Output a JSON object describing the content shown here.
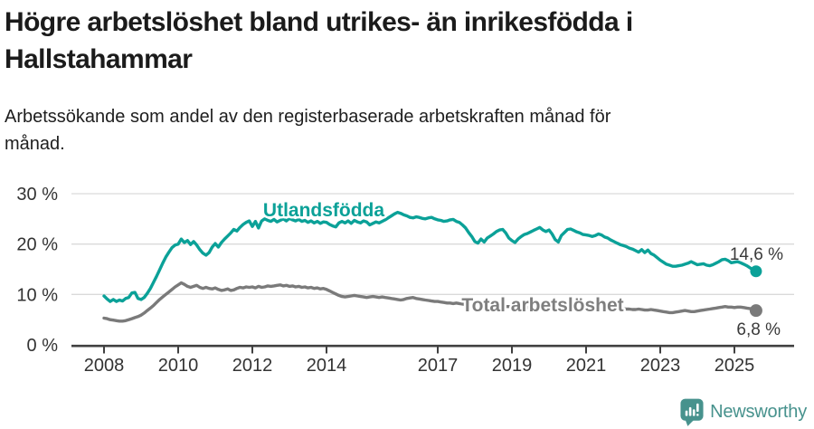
{
  "header": {
    "title_lines": [
      "Högre arbetslöshet bland utrikes- än inrikesfödda i",
      "Hallstahammar"
    ],
    "subtitle_lines": [
      "Arbetssökande som andel av den registerbaserade arbetskraften månad för",
      "månad."
    ]
  },
  "footer": {
    "brand": "Newsworthy",
    "logo_icon": "speech-bubble-bar-chart"
  },
  "colors": {
    "teal_series": "#0ba198",
    "gray_series": "#7a7a7a",
    "gray_label": "#7f7f7f",
    "value_label": "#3a3a3a",
    "axis": "#404040",
    "gridline": "#dadada",
    "tick_text": "#333333",
    "logo_teal": "#47928d"
  },
  "chart_data": {
    "type": "line",
    "title": "Högre arbetslöshet bland utrikes- än inrikesfödda i Hallstahammar",
    "subtitle": "Arbetssökande som andel av den registerbaserade arbetskraften månad för månad.",
    "xlabel": "",
    "ylabel": "",
    "grid": true,
    "ylim": [
      0,
      30
    ],
    "xlim": [
      2008.0,
      2025.67
    ],
    "y_ticks": [
      {
        "y": 0,
        "label": "0 %"
      },
      {
        "y": 10,
        "label": "10 %"
      },
      {
        "y": 20,
        "label": "20 %"
      },
      {
        "y": 30,
        "label": "30 %"
      }
    ],
    "x_ticks": [
      {
        "x": 2008,
        "label": "2008"
      },
      {
        "x": 2010,
        "label": "2010"
      },
      {
        "x": 2012,
        "label": "2012"
      },
      {
        "x": 2014,
        "label": "2014"
      },
      {
        "x": 2017,
        "label": "2017"
      },
      {
        "x": 2019,
        "label": "2019"
      },
      {
        "x": 2021,
        "label": "2021"
      },
      {
        "x": 2023,
        "label": "2023"
      },
      {
        "x": 2025,
        "label": "2025"
      }
    ],
    "series": [
      {
        "name": "Utlandsfödda",
        "color": "#0ba198",
        "label_color": "#0ba198",
        "end_label": "14,6 %",
        "end_value": 14.6,
        "start_year": 2008,
        "points_per_year": 12,
        "values": [
          9.7,
          9.1,
          8.6,
          9.0,
          8.6,
          8.9,
          8.7,
          9.2,
          9.4,
          10.3,
          10.4,
          9.2,
          9.0,
          9.4,
          10.2,
          11.2,
          12.4,
          13.6,
          14.9,
          16.2,
          17.4,
          18.4,
          19.3,
          19.8,
          20.0,
          21.0,
          20.3,
          20.7,
          19.9,
          20.5,
          19.8,
          18.9,
          18.2,
          17.8,
          18.3,
          19.4,
          20.1,
          19.4,
          20.3,
          21.0,
          21.6,
          22.2,
          22.9,
          22.6,
          23.3,
          23.9,
          24.3,
          24.6,
          23.5,
          24.5,
          23.2,
          24.6,
          25.0,
          24.7,
          24.5,
          24.9,
          24.4,
          24.7,
          25.0,
          24.6,
          25.1,
          24.8,
          24.6,
          24.9,
          24.5,
          24.7,
          24.3,
          24.6,
          24.2,
          24.5,
          24.1,
          24.4,
          24.3,
          23.9,
          23.6,
          23.4,
          24.2,
          24.5,
          24.2,
          24.6,
          24.1,
          24.7,
          24.4,
          24.2,
          24.6,
          24.4,
          23.8,
          24.1,
          24.4,
          24.2,
          24.5,
          24.8,
          25.2,
          25.6,
          26.0,
          26.3,
          26.1,
          25.8,
          25.6,
          25.3,
          25.2,
          25.4,
          25.3,
          25.1,
          25.0,
          25.2,
          25.3,
          25.0,
          24.8,
          24.7,
          24.5,
          24.6,
          24.8,
          24.9,
          24.5,
          24.3,
          23.8,
          23.2,
          22.3,
          21.5,
          20.5,
          20.2,
          21.0,
          20.4,
          21.2,
          21.6,
          22.0,
          22.5,
          22.8,
          22.9,
          22.2,
          21.2,
          20.7,
          20.3,
          21.0,
          21.5,
          21.9,
          22.1,
          22.4,
          22.7,
          23.0,
          23.3,
          22.8,
          22.5,
          22.8,
          22.0,
          20.9,
          20.4,
          21.7,
          22.3,
          22.9,
          23.0,
          22.7,
          22.4,
          22.2,
          21.9,
          21.8,
          21.7,
          21.5,
          21.7,
          22.0,
          21.8,
          21.4,
          21.2,
          20.8,
          20.5,
          20.2,
          19.9,
          19.7,
          19.5,
          19.2,
          19.0,
          18.7,
          18.4,
          18.9,
          18.3,
          18.8,
          18.1,
          17.8,
          17.3,
          16.8,
          16.4,
          16.0,
          15.8,
          15.6,
          15.6,
          15.7,
          15.8,
          16.0,
          16.2,
          16.5,
          16.2,
          15.9,
          16.0,
          16.1,
          15.8,
          15.7,
          15.9,
          16.2,
          16.5,
          16.9,
          17.0,
          16.7,
          16.3,
          16.4,
          16.5,
          16.3,
          16.0,
          15.7,
          15.3,
          14.9,
          14.6
        ]
      },
      {
        "name": "Total arbetslöshet",
        "color": "#7a7a7a",
        "label_color": "#7f7f7f",
        "end_label": "6,8 %",
        "end_value": 6.8,
        "start_year": 2008,
        "points_per_year": 12,
        "values": [
          5.3,
          5.2,
          5.0,
          4.9,
          4.8,
          4.7,
          4.7,
          4.8,
          5.0,
          5.2,
          5.4,
          5.6,
          5.9,
          6.3,
          6.8,
          7.3,
          7.8,
          8.4,
          9.0,
          9.5,
          10.0,
          10.5,
          11.0,
          11.5,
          11.9,
          12.3,
          12.0,
          11.6,
          11.4,
          11.6,
          11.8,
          11.4,
          11.2,
          11.4,
          11.2,
          11.1,
          11.3,
          11.0,
          10.8,
          10.9,
          11.1,
          10.8,
          10.9,
          11.2,
          11.4,
          11.3,
          11.5,
          11.4,
          11.5,
          11.3,
          11.6,
          11.4,
          11.5,
          11.7,
          11.6,
          11.7,
          11.8,
          11.9,
          11.7,
          11.8,
          11.6,
          11.7,
          11.5,
          11.6,
          11.4,
          11.5,
          11.3,
          11.4,
          11.2,
          11.3,
          11.1,
          11.2,
          11.0,
          10.7,
          10.4,
          10.1,
          9.8,
          9.6,
          9.5,
          9.6,
          9.7,
          9.8,
          9.7,
          9.6,
          9.5,
          9.4,
          9.5,
          9.6,
          9.5,
          9.4,
          9.5,
          9.4,
          9.3,
          9.2,
          9.1,
          9.0,
          8.9,
          9.0,
          9.2,
          9.3,
          9.4,
          9.2,
          9.1,
          9.0,
          8.9,
          8.8,
          8.7,
          8.6,
          8.6,
          8.5,
          8.4,
          8.3,
          8.3,
          8.2,
          8.3,
          8.2,
          8.1,
          8.0,
          8.0,
          7.9,
          7.9,
          8.0,
          7.9,
          7.8,
          7.8,
          7.7,
          7.8,
          7.9,
          7.8,
          7.7,
          7.6,
          7.6,
          7.5,
          7.6,
          7.6,
          7.5,
          7.5,
          7.4,
          7.5,
          7.5,
          7.6,
          7.6,
          7.7,
          7.8,
          7.9,
          8.0,
          8.2,
          8.4,
          8.5,
          8.4,
          8.4,
          8.3,
          8.3,
          8.2,
          8.2,
          8.1,
          8.0,
          8.0,
          7.9,
          7.9,
          7.8,
          7.8,
          7.7,
          7.6,
          7.5,
          7.4,
          7.3,
          7.3,
          7.2,
          7.1,
          7.1,
          7.0,
          7.0,
          7.1,
          7.0,
          6.9,
          6.9,
          7.0,
          6.9,
          6.8,
          6.7,
          6.6,
          6.5,
          6.4,
          6.4,
          6.5,
          6.6,
          6.7,
          6.8,
          6.7,
          6.6,
          6.6,
          6.7,
          6.8,
          6.9,
          7.0,
          7.1,
          7.2,
          7.3,
          7.4,
          7.5,
          7.6,
          7.5,
          7.5,
          7.4,
          7.5,
          7.5,
          7.4,
          7.3,
          7.2,
          7.1,
          6.8
        ]
      }
    ],
    "legend_position": "inline-labels"
  }
}
